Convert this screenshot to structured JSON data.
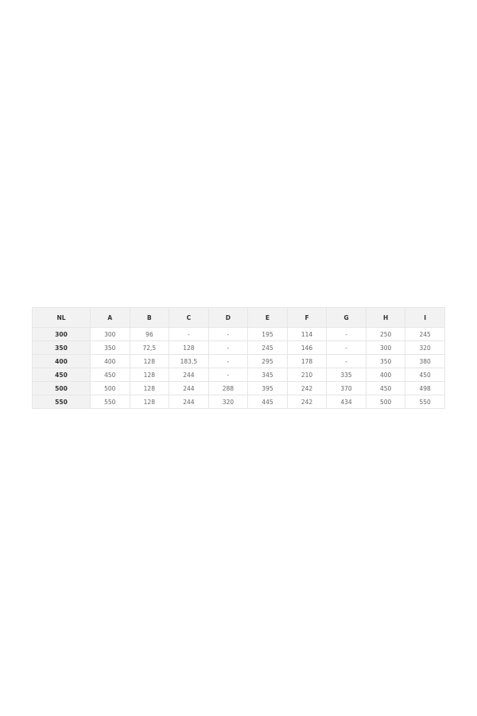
{
  "table": {
    "headers": [
      "NL",
      "A",
      "B",
      "C",
      "D",
      "E",
      "F",
      "G",
      "H",
      "I"
    ],
    "rows": [
      [
        "300",
        "300",
        "96",
        "-",
        "-",
        "195",
        "114",
        "-",
        "250",
        "245"
      ],
      [
        "350",
        "350",
        "72,5",
        "128",
        "-",
        "245",
        "146",
        "-",
        "300",
        "320"
      ],
      [
        "400",
        "400",
        "128",
        "183,5",
        "-",
        "295",
        "178",
        "-",
        "350",
        "380"
      ],
      [
        "450",
        "450",
        "128",
        "244",
        "-",
        "345",
        "210",
        "335",
        "400",
        "450"
      ],
      [
        "500",
        "500",
        "128",
        "244",
        "288",
        "395",
        "242",
        "370",
        "450",
        "498"
      ],
      [
        "550",
        "550",
        "128",
        "244",
        "320",
        "445",
        "242",
        "434",
        "500",
        "550"
      ]
    ]
  }
}
